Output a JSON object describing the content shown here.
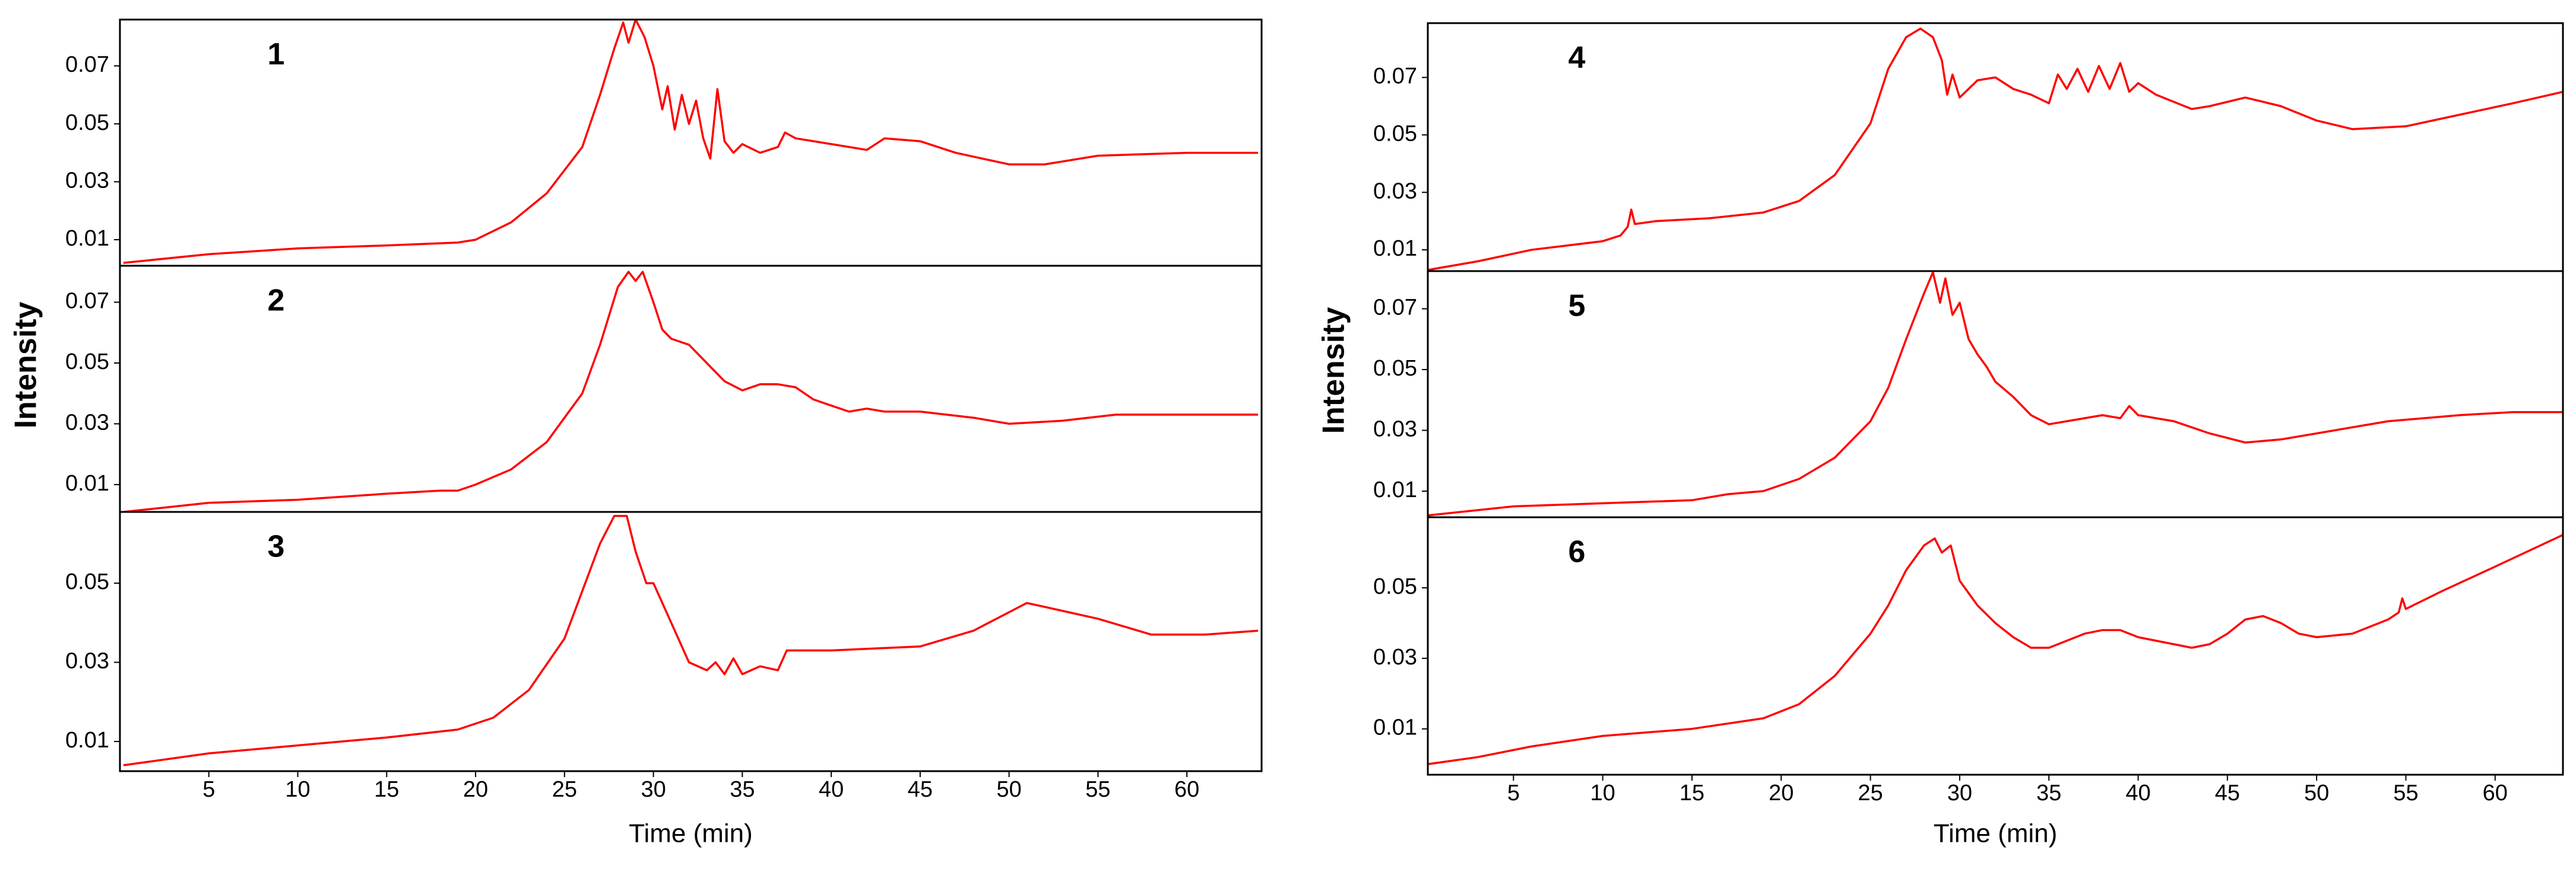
{
  "chart_data": [
    {
      "type": "line",
      "title": "1",
      "x": [
        0.2,
        5,
        10,
        15,
        19,
        20,
        22,
        24,
        26,
        27,
        27.8,
        28.3,
        28.6,
        29,
        29.5,
        30,
        30.5,
        30.8,
        31.2,
        31.6,
        32,
        32.4,
        32.8,
        33.2,
        33.6,
        34,
        34.5,
        35,
        36,
        37,
        37.4,
        38,
        40,
        42,
        43,
        45,
        47,
        50,
        52,
        55,
        60,
        64
      ],
      "series": [
        {
          "color": "#ff0000",
          "values": [
            0.002,
            0.005,
            0.007,
            0.008,
            0.009,
            0.01,
            0.016,
            0.026,
            0.042,
            0.06,
            0.076,
            0.085,
            0.078,
            0.086,
            0.08,
            0.07,
            0.055,
            0.063,
            0.048,
            0.06,
            0.05,
            0.058,
            0.045,
            0.038,
            0.062,
            0.044,
            0.04,
            0.043,
            0.04,
            0.042,
            0.047,
            0.045,
            0.043,
            0.041,
            0.045,
            0.044,
            0.04,
            0.036,
            0.036,
            0.039,
            0.04,
            0.04
          ]
        }
      ],
      "xlim": [
        0,
        64.2
      ],
      "ylim": [
        0.001,
        0.086
      ],
      "yticks": [
        0.01,
        0.03,
        0.05,
        0.07
      ]
    },
    {
      "type": "line",
      "title": "2",
      "ylabel": "Intensity",
      "x": [
        0.2,
        5,
        10,
        15,
        18,
        19,
        20,
        22,
        24,
        26,
        27,
        28,
        28.6,
        29,
        29.4,
        30,
        30.5,
        31,
        32,
        33,
        34,
        35,
        36,
        37,
        38,
        39,
        40,
        41,
        42,
        43,
        45,
        48,
        50,
        53,
        56,
        60,
        64
      ],
      "series": [
        {
          "color": "#ff0000",
          "values": [
            0.001,
            0.004,
            0.005,
            0.007,
            0.008,
            0.008,
            0.01,
            0.015,
            0.024,
            0.04,
            0.056,
            0.075,
            0.08,
            0.077,
            0.08,
            0.07,
            0.061,
            0.058,
            0.056,
            0.05,
            0.044,
            0.041,
            0.043,
            0.043,
            0.042,
            0.038,
            0.036,
            0.034,
            0.035,
            0.034,
            0.034,
            0.032,
            0.03,
            0.031,
            0.033,
            0.033,
            0.033
          ]
        }
      ],
      "xlim": [
        0,
        64.2
      ],
      "ylim": [
        0.001,
        0.082
      ],
      "yticks": [
        0.01,
        0.03,
        0.05,
        0.07
      ]
    },
    {
      "type": "line",
      "title": "3",
      "xlabel": "Time (min)",
      "x": [
        0.2,
        5,
        10,
        15,
        19,
        21,
        23,
        25,
        26,
        27,
        27.8,
        28.5,
        29,
        29.6,
        30,
        31,
        32,
        33,
        33.5,
        34,
        34.5,
        35,
        36,
        37,
        37.5,
        40,
        45,
        48,
        51,
        52,
        55,
        58,
        61,
        64
      ],
      "series": [
        {
          "color": "#ff0000",
          "values": [
            0.004,
            0.007,
            0.009,
            0.011,
            0.013,
            0.016,
            0.023,
            0.036,
            0.048,
            0.06,
            0.067,
            0.067,
            0.058,
            0.05,
            0.05,
            0.04,
            0.03,
            0.028,
            0.03,
            0.027,
            0.031,
            0.027,
            0.029,
            0.028,
            0.033,
            0.033,
            0.034,
            0.038,
            0.045,
            0.044,
            0.041,
            0.037,
            0.037,
            0.038
          ]
        }
      ],
      "xlim": [
        0,
        64.2
      ],
      "ylim": [
        0.0025,
        0.068
      ],
      "yticks": [
        0.01,
        0.03,
        0.05
      ],
      "xticks": [
        5,
        10,
        15,
        20,
        25,
        30,
        35,
        40,
        45,
        50,
        55,
        60
      ]
    },
    {
      "type": "line",
      "title": "4",
      "x": [
        0.2,
        3,
        6,
        10,
        11,
        11.4,
        11.6,
        11.8,
        13,
        16,
        19,
        21,
        23,
        25,
        26,
        27,
        27.8,
        28.5,
        29,
        29.3,
        29.6,
        30,
        31,
        32,
        33,
        34,
        35,
        35.5,
        36,
        36.6,
        37.2,
        37.8,
        38.4,
        39,
        39.5,
        40,
        41,
        43,
        44,
        46,
        48,
        50,
        52,
        55,
        58,
        61,
        63.8
      ],
      "series": [
        {
          "color": "#ff0000",
          "values": [
            0.003,
            0.006,
            0.01,
            0.013,
            0.015,
            0.018,
            0.024,
            0.019,
            0.02,
            0.021,
            0.023,
            0.027,
            0.036,
            0.054,
            0.073,
            0.084,
            0.087,
            0.084,
            0.076,
            0.064,
            0.071,
            0.063,
            0.069,
            0.07,
            0.066,
            0.064,
            0.061,
            0.071,
            0.066,
            0.073,
            0.065,
            0.074,
            0.066,
            0.075,
            0.065,
            0.068,
            0.064,
            0.059,
            0.06,
            0.063,
            0.06,
            0.055,
            0.052,
            0.053,
            0.057,
            0.061,
            0.065
          ]
        }
      ],
      "xlim": [
        0.2,
        63.8
      ],
      "ylim": [
        0.0026,
        0.0889
      ],
      "yticks": [
        0.01,
        0.03,
        0.05,
        0.07
      ]
    },
    {
      "type": "line",
      "title": "5",
      "ylabel": "Intensity",
      "x": [
        0.2,
        5,
        10,
        15,
        17,
        19,
        21,
        23,
        25,
        26,
        27,
        28,
        28.5,
        28.9,
        29.2,
        29.6,
        30,
        30.5,
        31,
        31.5,
        32,
        33,
        34,
        35,
        36,
        37,
        38,
        39,
        39.5,
        40,
        42,
        44,
        46,
        48,
        50,
        54,
        58,
        61,
        63.8
      ],
      "series": [
        {
          "color": "#ff0000",
          "values": [
            0.002,
            0.005,
            0.006,
            0.007,
            0.009,
            0.01,
            0.014,
            0.021,
            0.033,
            0.044,
            0.06,
            0.075,
            0.082,
            0.072,
            0.08,
            0.068,
            0.072,
            0.06,
            0.055,
            0.051,
            0.046,
            0.041,
            0.035,
            0.032,
            0.033,
            0.034,
            0.035,
            0.034,
            0.038,
            0.035,
            0.033,
            0.029,
            0.026,
            0.027,
            0.029,
            0.033,
            0.035,
            0.036,
            0.036
          ]
        }
      ],
      "xlim": [
        0.2,
        63.8
      ],
      "ylim": [
        0.0014,
        0.0824
      ],
      "yticks": [
        0.01,
        0.03,
        0.05,
        0.07
      ]
    },
    {
      "type": "line",
      "title": "6",
      "xlabel": "Time (min)",
      "x": [
        0.2,
        3,
        6,
        10,
        15,
        19,
        21,
        23,
        25,
        26,
        27,
        28,
        28.6,
        29,
        29.5,
        30,
        31,
        32,
        33,
        34,
        35,
        36,
        37,
        38,
        39,
        40,
        41,
        42,
        43,
        44,
        45,
        46,
        47,
        48,
        49,
        50,
        52,
        54,
        54.6,
        54.8,
        55,
        57,
        60,
        63.8
      ],
      "series": [
        {
          "color": "#ff0000",
          "values": [
            0.0,
            0.002,
            0.005,
            0.008,
            0.01,
            0.013,
            0.017,
            0.025,
            0.037,
            0.045,
            0.055,
            0.062,
            0.064,
            0.06,
            0.062,
            0.052,
            0.045,
            0.04,
            0.036,
            0.033,
            0.033,
            0.035,
            0.037,
            0.038,
            0.038,
            0.036,
            0.035,
            0.034,
            0.033,
            0.034,
            0.037,
            0.041,
            0.042,
            0.04,
            0.037,
            0.036,
            0.037,
            0.041,
            0.043,
            0.047,
            0.044,
            0.049,
            0.056,
            0.065
          ]
        }
      ],
      "xlim": [
        0.2,
        63.8
      ],
      "ylim": [
        -0.003,
        0.07
      ],
      "yticks": [
        0.01,
        0.03,
        0.05
      ],
      "xticks": [
        5,
        10,
        15,
        20,
        25,
        30,
        35,
        40,
        45,
        50,
        55,
        60
      ]
    }
  ]
}
